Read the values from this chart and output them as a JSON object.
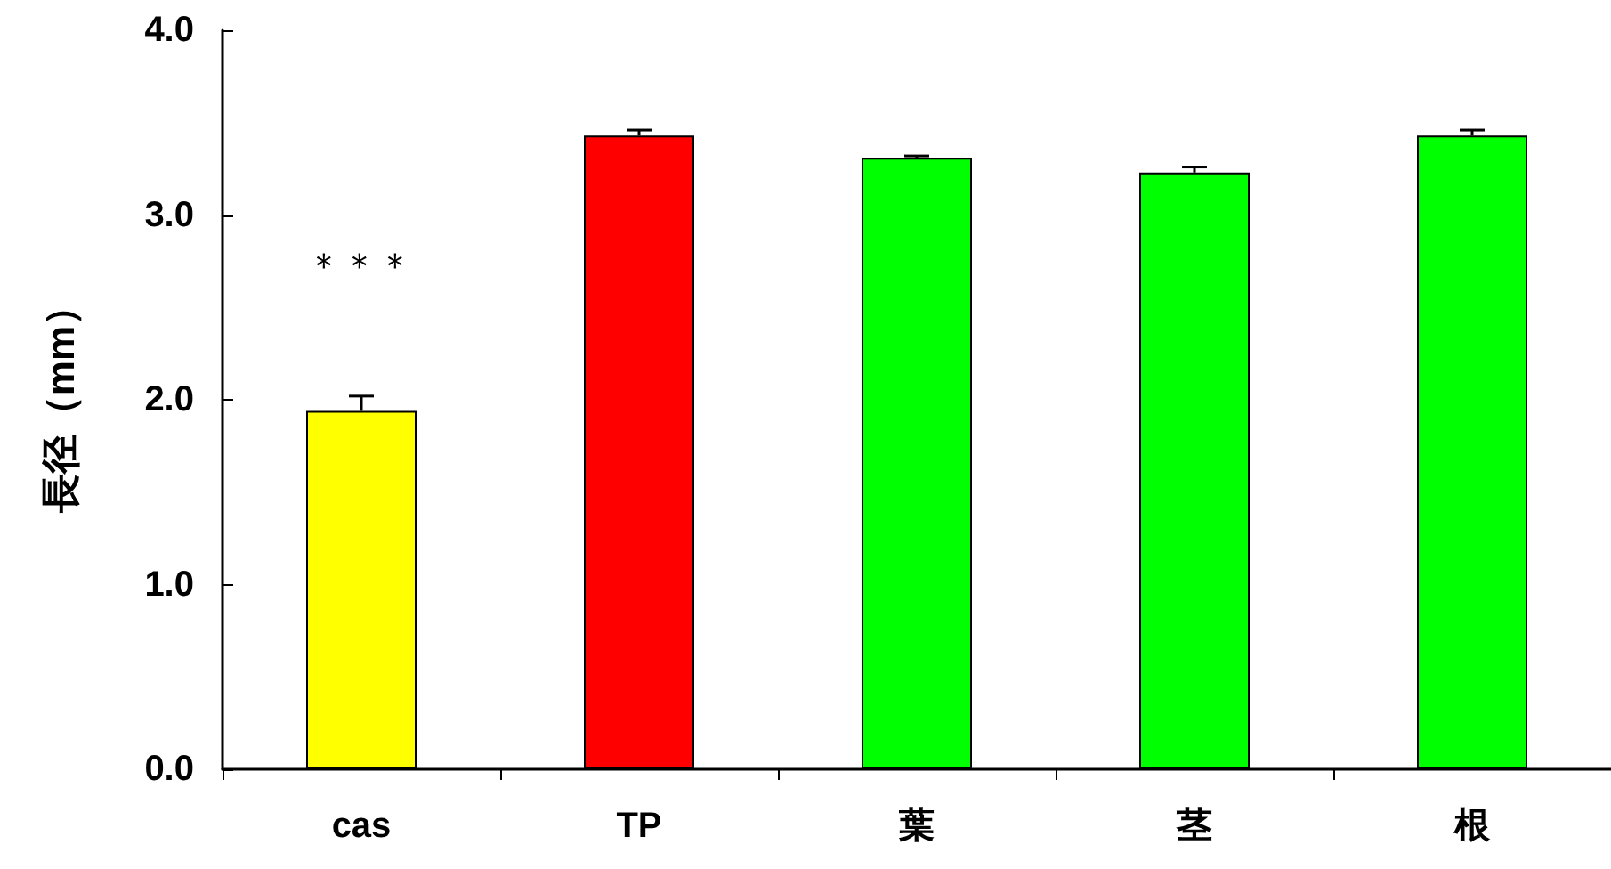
{
  "chart_data": {
    "type": "bar",
    "ylabel": "長径（mm）",
    "categories": [
      "cas",
      "TP",
      "葉",
      "茎",
      "根"
    ],
    "values": [
      1.94,
      3.43,
      3.31,
      3.23,
      3.43
    ],
    "colors": [
      "#ffff00",
      "#ff0000",
      "#00ff00",
      "#00ff00",
      "#00ff00"
    ],
    "errors": [
      [
        1.94,
        2.02
      ],
      [
        3.43,
        3.46
      ],
      [
        3.31,
        3.32
      ],
      [
        3.23,
        3.26
      ],
      [
        3.43,
        3.46
      ]
    ],
    "ylim": [
      0,
      4
    ],
    "yticks": [
      {
        "value": 0,
        "label": "0.0"
      },
      {
        "value": 1,
        "label": "1.0"
      },
      {
        "value": 2,
        "label": "2.0"
      },
      {
        "value": 3,
        "label": "3.0"
      },
      {
        "value": 4,
        "label": "4.0"
      }
    ],
    "annotations": [
      "＊＊＊"
    ],
    "grid": false
  }
}
